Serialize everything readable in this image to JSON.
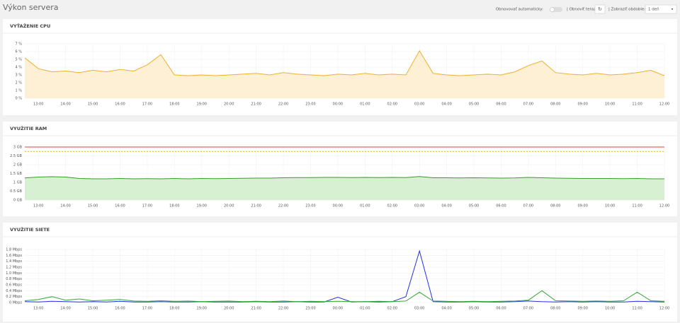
{
  "header": {
    "title": "Výkon servera",
    "auto_refresh": "Obnovovať automaticky:",
    "refresh_now": "| Obnoviť teraz:",
    "period_label": "| Zobraziť obdobie:",
    "period_value": "1 deň"
  },
  "chart_data": [
    {
      "type": "area",
      "title": "VYŤAŽENIE CPU",
      "x": [
        null,
        "13:00",
        null,
        "14:00",
        null,
        "15:00",
        null,
        "16:00",
        null,
        "17:00",
        null,
        "18:00",
        null,
        "19:00",
        null,
        "20:00",
        null,
        "21:00",
        null,
        "22:00",
        null,
        "23:00",
        null,
        "00:00",
        null,
        "01:00",
        null,
        "02:00",
        null,
        "03:00",
        null,
        "04:00",
        null,
        "05:00",
        null,
        "06:00",
        null,
        "07:00",
        null,
        "08:00",
        null,
        "09:00",
        null,
        "10:00",
        null,
        "11:00",
        null,
        "12:00"
      ],
      "series": [
        {
          "color": "#f0b030",
          "fill": "#fdf0d5",
          "values": [
            5.2,
            3.8,
            3.4,
            3.5,
            3.3,
            3.6,
            3.4,
            3.7,
            3.5,
            4.3,
            5.6,
            3.0,
            2.9,
            3.0,
            2.9,
            3.0,
            3.1,
            3.2,
            3.0,
            3.3,
            3.1,
            3.0,
            2.9,
            3.1,
            3.0,
            3.2,
            3.0,
            3.1,
            3.0,
            6.1,
            3.2,
            3.0,
            2.9,
            3.0,
            3.1,
            3.0,
            3.4,
            4.2,
            4.8,
            3.3,
            3.1,
            3.0,
            3.2,
            3.0,
            3.1,
            3.3,
            3.6,
            2.9
          ]
        }
      ],
      "ylim": [
        0,
        7
      ],
      "yticks": [
        {
          "value": 0,
          "label": "0 %"
        },
        {
          "value": 1,
          "label": "1 %"
        },
        {
          "value": 2,
          "label": "2 %"
        },
        {
          "value": 3,
          "label": "3 %"
        },
        {
          "value": 4,
          "label": "4 %"
        },
        {
          "value": 5,
          "label": "5 %"
        },
        {
          "value": 6,
          "label": "6 %"
        },
        {
          "value": 7,
          "label": "7 %"
        }
      ],
      "grid": true
    },
    {
      "type": "area",
      "title": "VYUŽITIE RAM",
      "x": [
        null,
        "13:00",
        null,
        "14:00",
        null,
        "15:00",
        null,
        "16:00",
        null,
        "17:00",
        null,
        "18:00",
        null,
        "19:00",
        null,
        "20:00",
        null,
        "21:00",
        null,
        "22:00",
        null,
        "23:00",
        null,
        "00:00",
        null,
        "01:00",
        null,
        "02:00",
        null,
        "03:00",
        null,
        "04:00",
        null,
        "05:00",
        null,
        "06:00",
        null,
        "07:00",
        null,
        "08:00",
        null,
        "09:00",
        null,
        "10:00",
        null,
        "11:00",
        null,
        "12:00"
      ],
      "series": [
        {
          "color": "#3a9a2a",
          "fill": "#d8f0d2",
          "values": [
            1.25,
            1.3,
            1.32,
            1.3,
            1.22,
            1.2,
            1.2,
            1.22,
            1.2,
            1.21,
            1.2,
            1.22,
            1.2,
            1.22,
            1.21,
            1.22,
            1.23,
            1.24,
            1.24,
            1.26,
            1.27,
            1.27,
            1.28,
            1.28,
            1.27,
            1.28,
            1.27,
            1.28,
            1.27,
            1.33,
            1.26,
            1.26,
            1.25,
            1.26,
            1.25,
            1.24,
            1.25,
            1.28,
            1.26,
            1.24,
            1.23,
            1.22,
            1.22,
            1.22,
            1.21,
            1.22,
            1.2,
            1.2
          ]
        }
      ],
      "ylim": [
        0,
        3
      ],
      "yticks": [
        {
          "value": 0,
          "label": "0 GB"
        },
        {
          "value": 0.5,
          "label": "0.5 GB"
        },
        {
          "value": 1,
          "label": "1 GB"
        },
        {
          "value": 1.5,
          "label": "1.5 GB"
        },
        {
          "value": 2,
          "label": "2 GB"
        },
        {
          "value": 2.5,
          "label": "2.5 GB"
        },
        {
          "value": 3,
          "label": "3 GB"
        }
      ],
      "limits": [
        {
          "value": 3,
          "color": "#e04040",
          "dashed": false
        },
        {
          "value": 2.75,
          "color": "#f0b000",
          "dashed": true
        }
      ],
      "grid": true
    },
    {
      "type": "line",
      "title": "VYUŽITIE SIETE",
      "x": [
        null,
        "13:00",
        null,
        "14:00",
        null,
        "15:00",
        null,
        "16:00",
        null,
        "17:00",
        null,
        "18:00",
        null,
        "19:00",
        null,
        "20:00",
        null,
        "21:00",
        null,
        "22:00",
        null,
        "23:00",
        null,
        "00:00",
        null,
        "01:00",
        null,
        "02:00",
        null,
        "03:00",
        null,
        "04:00",
        null,
        "05:00",
        null,
        "06:00",
        null,
        "07:00",
        null,
        "08:00",
        null,
        "09:00",
        null,
        "10:00",
        null,
        "11:00",
        null,
        "12:00"
      ],
      "series": [
        {
          "color": "#2233dd",
          "values": [
            0.03,
            0.02,
            0.04,
            0.03,
            0.02,
            0.03,
            0.02,
            0.04,
            0.02,
            0.02,
            0.03,
            0.02,
            0.02,
            0.03,
            0.02,
            0.02,
            0.02,
            0.03,
            0.02,
            0.02,
            0.03,
            0.02,
            0.02,
            0.18,
            0.02,
            0.03,
            0.02,
            0.03,
            0.2,
            1.75,
            0.03,
            0.02,
            0.02,
            0.03,
            0.02,
            0.02,
            0.03,
            0.05,
            0.03,
            0.02,
            0.03,
            0.02,
            0.03,
            0.02,
            0.02,
            0.04,
            0.03,
            0.02
          ]
        },
        {
          "color": "#33aa33",
          "values": [
            0.06,
            0.1,
            0.2,
            0.08,
            0.12,
            0.06,
            0.08,
            0.1,
            0.05,
            0.04,
            0.06,
            0.04,
            0.05,
            0.03,
            0.04,
            0.05,
            0.03,
            0.04,
            0.03,
            0.05,
            0.03,
            0.04,
            0.03,
            0.04,
            0.03,
            0.03,
            0.04,
            0.03,
            0.05,
            0.35,
            0.05,
            0.04,
            0.03,
            0.04,
            0.03,
            0.04,
            0.05,
            0.08,
            0.4,
            0.06,
            0.05,
            0.04,
            0.05,
            0.04,
            0.06,
            0.35,
            0.06,
            0.04
          ]
        }
      ],
      "ylim": [
        0,
        1.8
      ],
      "yticks": [
        {
          "value": 0,
          "label": "0 Mbps"
        },
        {
          "value": 0.2,
          "label": "0.2 Mbps"
        },
        {
          "value": 0.4,
          "label": "0.4 Mbps"
        },
        {
          "value": 0.6,
          "label": "0.6 Mbps"
        },
        {
          "value": 0.8,
          "label": "0.8 Mbps"
        },
        {
          "value": 1,
          "label": "1.0 Mbps"
        },
        {
          "value": 1.2,
          "label": "1.2 Mbps"
        },
        {
          "value": 1.4,
          "label": "1.4 Mbps"
        },
        {
          "value": 1.6,
          "label": "1.6 Mbps"
        },
        {
          "value": 1.8,
          "label": "1.8 Mbps"
        }
      ],
      "grid": true
    }
  ]
}
